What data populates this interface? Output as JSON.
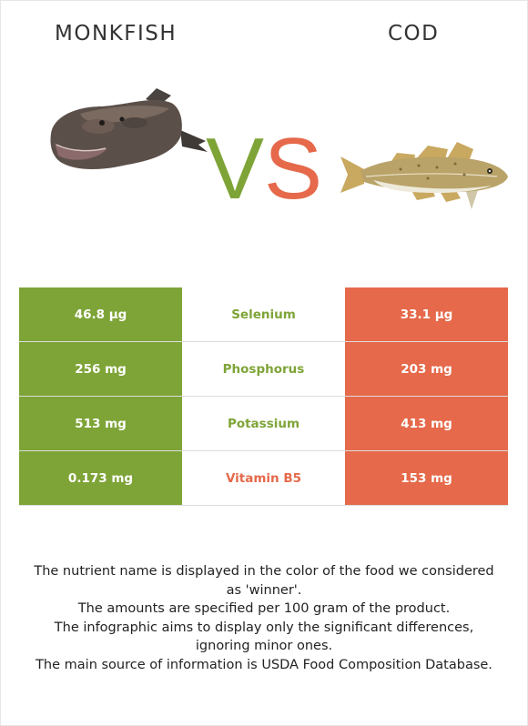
{
  "foods": {
    "left": {
      "name": "MONKFISH",
      "color": "#7ea437"
    },
    "right": {
      "name": "COD",
      "color": "#e5694a"
    }
  },
  "vs": {
    "v": "V",
    "s": "S"
  },
  "rows": [
    {
      "nutrient": "Selenium",
      "left": "46.8 µg",
      "right": "33.1 µg",
      "winner": "left"
    },
    {
      "nutrient": "Phosphorus",
      "left": "256 mg",
      "right": "203 mg",
      "winner": "left"
    },
    {
      "nutrient": "Potassium",
      "left": "513 mg",
      "right": "413 mg",
      "winner": "left"
    },
    {
      "nutrient": "Vitamin B5",
      "left": "0.173 mg",
      "right": "153 mg",
      "winner": "right"
    }
  ],
  "notes": [
    "The nutrient name is displayed in the color of the food we considered as 'winner'.",
    "The amounts are specified per 100 gram of the product.",
    "The infographic aims to display only the significant differences, ignoring minor ones.",
    "The main source of information is USDA Food Composition Database."
  ]
}
